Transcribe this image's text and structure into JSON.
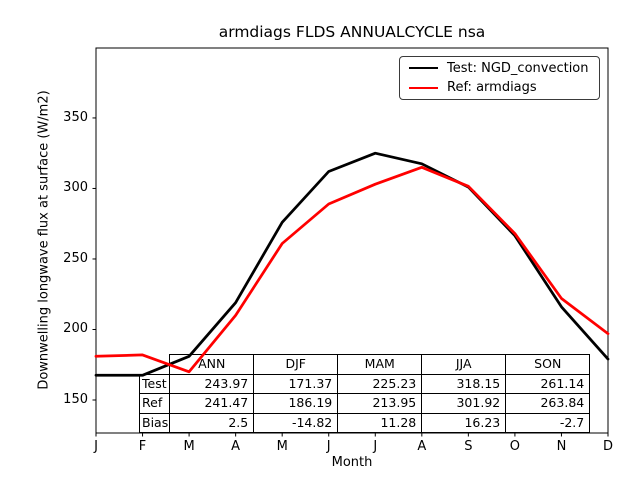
{
  "title": "armdiags FLDS ANNUALCYCLE nsa",
  "axes": {
    "xlabel": "Month",
    "ylabel": "Downwelling longwave flux at surface (W/m2)"
  },
  "legend": {
    "items": [
      {
        "label": "Test: NGD_convection",
        "color": "#000000"
      },
      {
        "label": "Ref: armdiags",
        "color": "#ff0000"
      }
    ]
  },
  "chart_data": {
    "type": "line",
    "title": "armdiags FLDS ANNUALCYCLE nsa",
    "xlabel": "Month",
    "ylabel": "Downwelling longwave flux at surface (W/m2)",
    "x": [
      "J",
      "F",
      "M",
      "A",
      "M",
      "J",
      "J",
      "A",
      "S",
      "O",
      "N",
      "D"
    ],
    "y_ticks": [
      150,
      200,
      250,
      300,
      350
    ],
    "ylim": [
      126.6,
      399.6
    ],
    "grid": false,
    "legend_position": "upper right",
    "series": [
      {
        "name": "Test: NGD_convection",
        "color": "#000000",
        "values": [
          167.5,
          167.5,
          181,
          219,
          276,
          312,
          325,
          317.5,
          301,
          266.5,
          216,
          179
        ]
      },
      {
        "name": "Ref: armdiags",
        "color": "#ff0000",
        "values": [
          181,
          182,
          170,
          210,
          261,
          289,
          303,
          315,
          301.5,
          268,
          222,
          197
        ]
      }
    ]
  },
  "table": {
    "col_headers": [
      "ANN",
      "DJF",
      "MAM",
      "JJA",
      "SON"
    ],
    "rows": [
      {
        "label": "Test",
        "values": [
          "243.97",
          "171.37",
          "225.23",
          "318.15",
          "261.14"
        ]
      },
      {
        "label": "Ref",
        "values": [
          "241.47",
          "186.19",
          "213.95",
          "301.92",
          "263.84"
        ]
      },
      {
        "label": "Bias",
        "values": [
          "2.5",
          "-14.82",
          "11.28",
          "16.23",
          "-2.7"
        ]
      }
    ]
  }
}
